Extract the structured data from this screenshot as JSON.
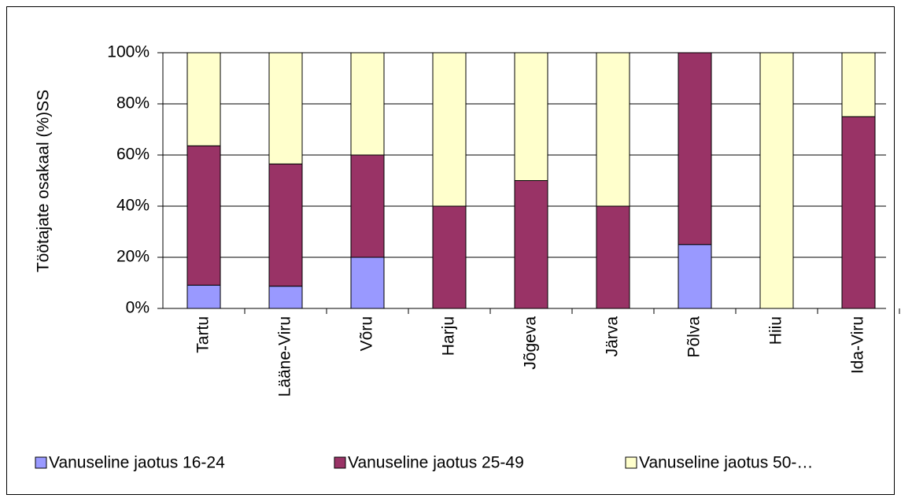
{
  "chart_data": {
    "type": "bar",
    "stacked": true,
    "ylabel": "Töötajate osakaal (%)SS",
    "categories": [
      "Tartu",
      "Lääne-Viru",
      "Võru",
      "Harju",
      "Jõgeva",
      "Järva",
      "Põlva",
      "Hiiu",
      "Ida-Viru"
    ],
    "series": [
      {
        "name": "Vanuseline jaotus 16-24",
        "color": "#9999ff",
        "values": [
          9.1,
          8.7,
          20,
          0,
          0,
          0,
          25,
          0,
          0
        ]
      },
      {
        "name": "Vanuseline jaotus 25-49",
        "color": "#993366",
        "values": [
          54.5,
          47.8,
          40,
          40,
          50,
          40,
          75,
          0,
          75
        ]
      },
      {
        "name": "Vanuseline jaotus 50-…",
        "color": "#ffffcc",
        "values": [
          36.4,
          43.5,
          40,
          60,
          50,
          60,
          0,
          100,
          25
        ]
      }
    ],
    "ylim": [
      0,
      100
    ],
    "yticks": [
      {
        "value": 0,
        "label": "0%"
      },
      {
        "value": 20,
        "label": "20%"
      },
      {
        "value": 40,
        "label": "40%"
      },
      {
        "value": 60,
        "label": "60%"
      },
      {
        "value": 80,
        "label": "80%"
      },
      {
        "value": 100,
        "label": "100%"
      }
    ],
    "grid": true,
    "legend": "bottom"
  }
}
